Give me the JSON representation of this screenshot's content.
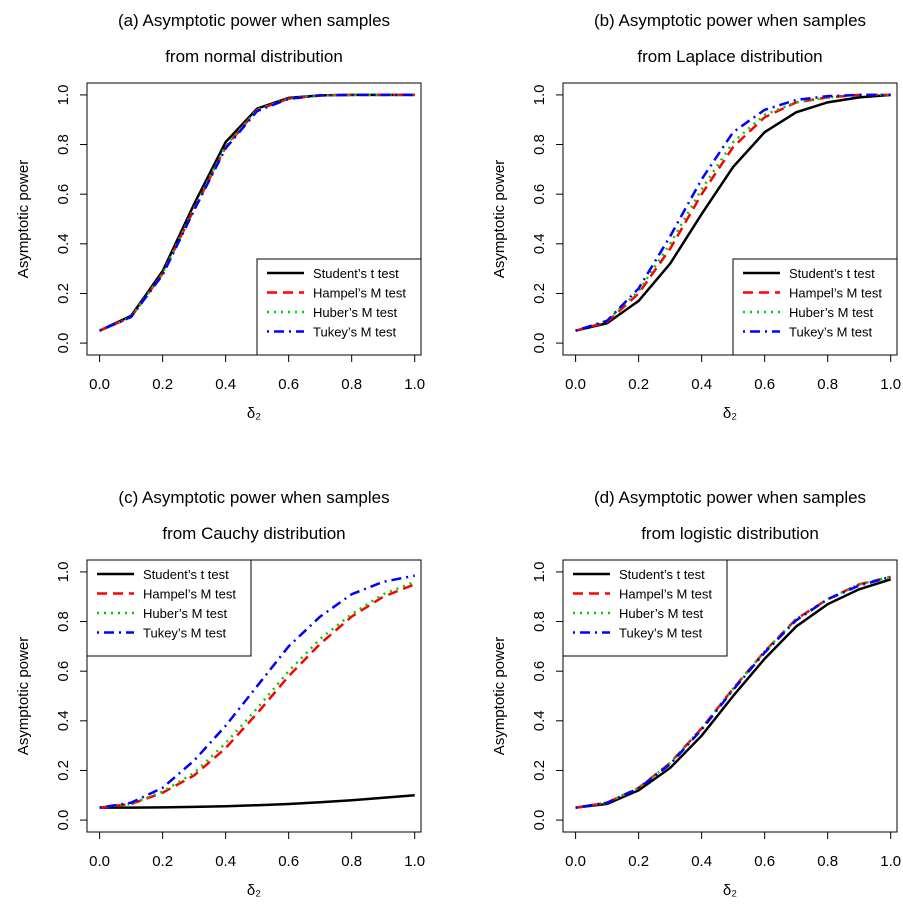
{
  "chart_data": [
    {
      "type": "line",
      "title": [
        "(a) Asymptotic power when samples",
        "from normal distribution"
      ],
      "xlabel": "δ₂",
      "ylabel": "Asymptotic power",
      "x": [
        0,
        0.1,
        0.2,
        0.3,
        0.4,
        0.5,
        0.6,
        0.7,
        0.8,
        0.9,
        1.0
      ],
      "xlim": [
        -0.04,
        1.02
      ],
      "ylim": [
        -0.048,
        1.048
      ],
      "xticks": [
        {
          "value": 0,
          "label": "0.0"
        },
        {
          "value": 0.2,
          "label": "0.2"
        },
        {
          "value": 0.4,
          "label": "0.4"
        },
        {
          "value": 0.6,
          "label": "0.6"
        },
        {
          "value": 0.8,
          "label": "0.8"
        },
        {
          "value": 1.0,
          "label": "1.0"
        }
      ],
      "yticks": [
        {
          "value": 0,
          "label": "0.0"
        },
        {
          "value": 0.2,
          "label": "0.2"
        },
        {
          "value": 0.4,
          "label": "0.4"
        },
        {
          "value": 0.6,
          "label": "0.6"
        },
        {
          "value": 0.8,
          "label": "0.8"
        },
        {
          "value": 1.0,
          "label": "1.0"
        }
      ],
      "legend": "bottom-right",
      "series": [
        {
          "name": "Student’s t test",
          "color": "#000000",
          "linestyle": "solid",
          "values": [
            0.05,
            0.11,
            0.29,
            0.56,
            0.81,
            0.945,
            0.988,
            0.998,
            1,
            1,
            1
          ]
        },
        {
          "name": "Hampel’s M test",
          "color": "#ff0000",
          "linestyle": "dashed",
          "values": [
            0.05,
            0.105,
            0.28,
            0.54,
            0.79,
            0.94,
            0.985,
            0.998,
            1,
            1,
            1
          ]
        },
        {
          "name": "Huber’s M test",
          "color": "#00cd00",
          "linestyle": "dotted",
          "values": [
            0.05,
            0.105,
            0.28,
            0.545,
            0.795,
            0.94,
            0.986,
            0.998,
            1,
            1,
            1
          ]
        },
        {
          "name": "Tukey’s M test",
          "color": "#0000ff",
          "linestyle": "dotdash",
          "values": [
            0.05,
            0.105,
            0.275,
            0.535,
            0.785,
            0.935,
            0.984,
            0.998,
            1,
            1,
            1
          ]
        }
      ]
    },
    {
      "type": "line",
      "title": [
        "(b) Asymptotic power when samples",
        "from Laplace distribution"
      ],
      "xlabel": "δ₂",
      "ylabel": "Asymptotic power",
      "x": [
        0,
        0.1,
        0.2,
        0.3,
        0.4,
        0.5,
        0.6,
        0.7,
        0.8,
        0.9,
        1.0
      ],
      "xlim": [
        -0.04,
        1.02
      ],
      "ylim": [
        -0.048,
        1.048
      ],
      "xticks": [
        {
          "value": 0,
          "label": "0.0"
        },
        {
          "value": 0.2,
          "label": "0.2"
        },
        {
          "value": 0.4,
          "label": "0.4"
        },
        {
          "value": 0.6,
          "label": "0.6"
        },
        {
          "value": 0.8,
          "label": "0.8"
        },
        {
          "value": 1.0,
          "label": "1.0"
        }
      ],
      "yticks": [
        {
          "value": 0,
          "label": "0.0"
        },
        {
          "value": 0.2,
          "label": "0.2"
        },
        {
          "value": 0.4,
          "label": "0.4"
        },
        {
          "value": 0.6,
          "label": "0.6"
        },
        {
          "value": 0.8,
          "label": "0.8"
        },
        {
          "value": 1.0,
          "label": "1.0"
        }
      ],
      "legend": "bottom-right",
      "series": [
        {
          "name": "Student’s t test",
          "color": "#000000",
          "linestyle": "solid",
          "values": [
            0.05,
            0.08,
            0.17,
            0.32,
            0.52,
            0.71,
            0.85,
            0.93,
            0.97,
            0.99,
            1.0
          ]
        },
        {
          "name": "Hampel’s M test",
          "color": "#ff0000",
          "linestyle": "dashed",
          "values": [
            0.05,
            0.085,
            0.2,
            0.38,
            0.6,
            0.79,
            0.91,
            0.97,
            0.99,
            1,
            1
          ]
        },
        {
          "name": "Huber’s M test",
          "color": "#00cd00",
          "linestyle": "dotted",
          "values": [
            0.05,
            0.09,
            0.21,
            0.4,
            0.62,
            0.81,
            0.92,
            0.97,
            0.99,
            1,
            1
          ]
        },
        {
          "name": "Tukey’s M test",
          "color": "#0000ff",
          "linestyle": "dotdash",
          "values": [
            0.05,
            0.09,
            0.22,
            0.43,
            0.66,
            0.85,
            0.94,
            0.98,
            0.995,
            1,
            1
          ]
        }
      ]
    },
    {
      "type": "line",
      "title": [
        "(c) Asymptotic power when samples",
        "from Cauchy distribution"
      ],
      "xlabel": "δ₂",
      "ylabel": "Asymptotic power",
      "x": [
        0,
        0.1,
        0.2,
        0.3,
        0.4,
        0.5,
        0.6,
        0.7,
        0.8,
        0.9,
        1.0
      ],
      "xlim": [
        -0.04,
        1.02
      ],
      "ylim": [
        -0.048,
        1.048
      ],
      "xticks": [
        {
          "value": 0,
          "label": "0.0"
        },
        {
          "value": 0.2,
          "label": "0.2"
        },
        {
          "value": 0.4,
          "label": "0.4"
        },
        {
          "value": 0.6,
          "label": "0.6"
        },
        {
          "value": 0.8,
          "label": "0.8"
        },
        {
          "value": 1.0,
          "label": "1.0"
        }
      ],
      "yticks": [
        {
          "value": 0,
          "label": "0.0"
        },
        {
          "value": 0.2,
          "label": "0.2"
        },
        {
          "value": 0.4,
          "label": "0.4"
        },
        {
          "value": 0.6,
          "label": "0.6"
        },
        {
          "value": 0.8,
          "label": "0.8"
        },
        {
          "value": 1.0,
          "label": "1.0"
        }
      ],
      "legend": "top-left",
      "series": [
        {
          "name": "Student’s t test",
          "color": "#000000",
          "linestyle": "solid",
          "values": [
            0.05,
            0.05,
            0.051,
            0.053,
            0.056,
            0.06,
            0.065,
            0.072,
            0.08,
            0.09,
            0.1
          ]
        },
        {
          "name": "Hampel’s M test",
          "color": "#ff0000",
          "linestyle": "dashed",
          "values": [
            0.05,
            0.065,
            0.11,
            0.18,
            0.29,
            0.43,
            0.58,
            0.71,
            0.82,
            0.9,
            0.95
          ]
        },
        {
          "name": "Huber’s M test",
          "color": "#00cd00",
          "linestyle": "dotted",
          "values": [
            0.05,
            0.065,
            0.115,
            0.19,
            0.31,
            0.45,
            0.6,
            0.73,
            0.83,
            0.91,
            0.96
          ]
        },
        {
          "name": "Tukey’s M test",
          "color": "#0000ff",
          "linestyle": "dotdash",
          "values": [
            0.05,
            0.07,
            0.13,
            0.24,
            0.38,
            0.54,
            0.7,
            0.82,
            0.91,
            0.96,
            0.985
          ]
        }
      ]
    },
    {
      "type": "line",
      "title": [
        "(d) Asymptotic power when samples",
        "from logistic distribution"
      ],
      "xlabel": "δ₂",
      "ylabel": "Asymptotic power",
      "x": [
        0,
        0.1,
        0.2,
        0.3,
        0.4,
        0.5,
        0.6,
        0.7,
        0.8,
        0.9,
        1.0
      ],
      "xlim": [
        -0.04,
        1.02
      ],
      "ylim": [
        -0.048,
        1.048
      ],
      "xticks": [
        {
          "value": 0,
          "label": "0.0"
        },
        {
          "value": 0.2,
          "label": "0.2"
        },
        {
          "value": 0.4,
          "label": "0.4"
        },
        {
          "value": 0.6,
          "label": "0.6"
        },
        {
          "value": 0.8,
          "label": "0.8"
        },
        {
          "value": 1.0,
          "label": "1.0"
        }
      ],
      "yticks": [
        {
          "value": 0,
          "label": "0.0"
        },
        {
          "value": 0.2,
          "label": "0.2"
        },
        {
          "value": 0.4,
          "label": "0.4"
        },
        {
          "value": 0.6,
          "label": "0.6"
        },
        {
          "value": 0.8,
          "label": "0.8"
        },
        {
          "value": 1.0,
          "label": "1.0"
        }
      ],
      "legend": "top-left",
      "series": [
        {
          "name": "Student’s t test",
          "color": "#000000",
          "linestyle": "solid",
          "values": [
            0.05,
            0.065,
            0.12,
            0.21,
            0.34,
            0.5,
            0.65,
            0.78,
            0.87,
            0.93,
            0.97
          ]
        },
        {
          "name": "Hampel’s M test",
          "color": "#ff0000",
          "linestyle": "dashed",
          "values": [
            0.05,
            0.07,
            0.13,
            0.23,
            0.37,
            0.53,
            0.68,
            0.81,
            0.89,
            0.95,
            0.98
          ]
        },
        {
          "name": "Huber’s M test",
          "color": "#00cd00",
          "linestyle": "dotted",
          "values": [
            0.05,
            0.07,
            0.13,
            0.23,
            0.37,
            0.53,
            0.68,
            0.81,
            0.89,
            0.95,
            0.98
          ]
        },
        {
          "name": "Tukey’s M test",
          "color": "#0000ff",
          "linestyle": "dotdash",
          "values": [
            0.05,
            0.07,
            0.128,
            0.225,
            0.365,
            0.525,
            0.675,
            0.805,
            0.89,
            0.945,
            0.98
          ]
        }
      ]
    }
  ]
}
